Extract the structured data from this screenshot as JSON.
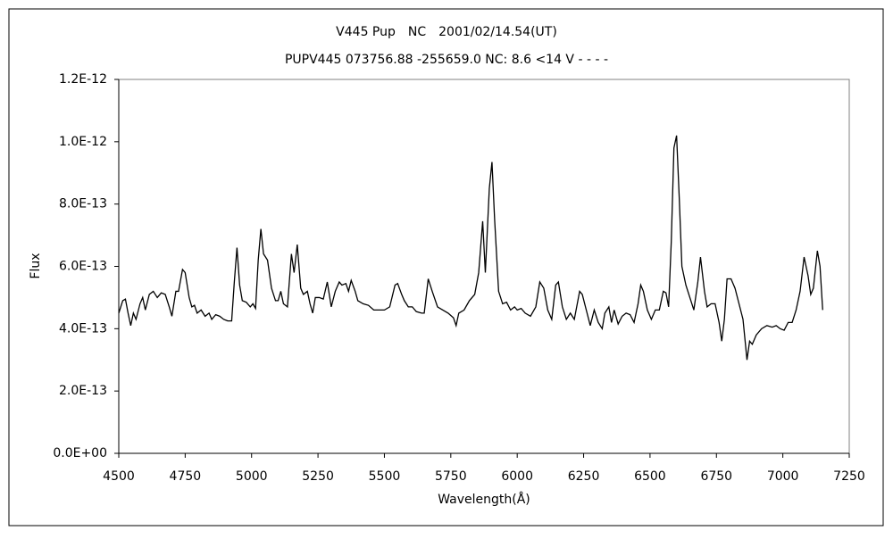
{
  "chart_data": {
    "type": "line",
    "title": "V445 Pup　NC　2001/02/14.54(UT)",
    "subtitle": "PUPV445 073756.88 -255659.0 NC: 8.6 <14 V - - - -",
    "x_label": "Wavelength(Å)",
    "y_label": "Flux",
    "xlim": [
      4500,
      7250
    ],
    "ylim": [
      0,
      1.2e-12
    ],
    "xticks": [
      4500,
      4750,
      5000,
      5250,
      5500,
      5750,
      6000,
      6250,
      6500,
      6750,
      7000,
      7250
    ],
    "yticks": [
      {
        "value": 0,
        "label": "0.0E+00"
      },
      {
        "value": 2e-13,
        "label": "2.0E-13"
      },
      {
        "value": 4e-13,
        "label": "4.0E-13"
      },
      {
        "value": 6e-13,
        "label": "6.0E-13"
      },
      {
        "value": 8e-13,
        "label": "8.0E-13"
      },
      {
        "value": 1e-12,
        "label": "1.0E-12"
      },
      {
        "value": 1.2e-12,
        "label": "1.2E-12"
      }
    ],
    "grid": false,
    "x": [
      4500,
      4515,
      4525,
      4535,
      4545,
      4555,
      4565,
      4580,
      4590,
      4600,
      4615,
      4630,
      4645,
      4660,
      4675,
      4690,
      4700,
      4715,
      4725,
      4740,
      4750,
      4765,
      4775,
      4785,
      4795,
      4810,
      4825,
      4840,
      4850,
      4865,
      4880,
      4895,
      4910,
      4925,
      4935,
      4945,
      4955,
      4965,
      4980,
      4995,
      5005,
      5015,
      5025,
      5035,
      5045,
      5060,
      5075,
      5090,
      5100,
      5110,
      5120,
      5135,
      5150,
      5160,
      5172,
      5185,
      5195,
      5210,
      5220,
      5230,
      5240,
      5255,
      5270,
      5285,
      5300,
      5315,
      5330,
      5340,
      5355,
      5365,
      5375,
      5390,
      5400,
      5420,
      5440,
      5460,
      5480,
      5500,
      5520,
      5540,
      5550,
      5565,
      5575,
      5590,
      5605,
      5620,
      5640,
      5650,
      5665,
      5680,
      5700,
      5720,
      5740,
      5760,
      5770,
      5780,
      5800,
      5820,
      5840,
      5855,
      5870,
      5880,
      5895,
      5905,
      5915,
      5930,
      5945,
      5960,
      5975,
      5990,
      6000,
      6015,
      6030,
      6050,
      6070,
      6085,
      6100,
      6115,
      6130,
      6145,
      6155,
      6170,
      6185,
      6200,
      6215,
      6235,
      6245,
      6260,
      6275,
      6290,
      6305,
      6320,
      6330,
      6345,
      6355,
      6365,
      6380,
      6395,
      6410,
      6425,
      6440,
      6455,
      6465,
      6475,
      6490,
      6505,
      6520,
      6535,
      6550,
      6560,
      6570,
      6580,
      6590,
      6600,
      6610,
      6620,
      6635,
      6650,
      6665,
      6680,
      6690,
      6705,
      6715,
      6730,
      6745,
      6760,
      6770,
      6780,
      6790,
      6805,
      6820,
      6835,
      6850,
      6865,
      6875,
      6885,
      6900,
      6920,
      6940,
      6960,
      6975,
      6990,
      7005,
      7020,
      7035,
      7050,
      7065,
      7080,
      7095,
      7105,
      7115,
      7130,
      7140,
      7150
    ],
    "series": [
      {
        "color": "#000000",
        "values": [
          4.5e-13,
          4.9e-13,
          4.95e-13,
          4.5e-13,
          4.1e-13,
          4.5e-13,
          4.3e-13,
          4.8e-13,
          5e-13,
          4.6e-13,
          5.1e-13,
          5.2e-13,
          5e-13,
          5.15e-13,
          5.1e-13,
          4.7e-13,
          4.4e-13,
          5.2e-13,
          5.2e-13,
          5.9e-13,
          5.8e-13,
          5e-13,
          4.7e-13,
          4.75e-13,
          4.5e-13,
          4.6e-13,
          4.4e-13,
          4.5e-13,
          4.3e-13,
          4.45e-13,
          4.4e-13,
          4.3e-13,
          4.25e-13,
          4.25e-13,
          5.5e-13,
          6.6e-13,
          5.4e-13,
          4.9e-13,
          4.85e-13,
          4.7e-13,
          4.8e-13,
          4.65e-13,
          6.2e-13,
          7.2e-13,
          6.4e-13,
          6.2e-13,
          5.3e-13,
          4.9e-13,
          4.9e-13,
          5.2e-13,
          4.8e-13,
          4.7e-13,
          6.4e-13,
          5.8e-13,
          6.7e-13,
          5.3e-13,
          5.1e-13,
          5.2e-13,
          4.8e-13,
          4.5e-13,
          5e-13,
          5e-13,
          4.95e-13,
          5.5e-13,
          4.7e-13,
          5.2e-13,
          5.5e-13,
          5.4e-13,
          5.45e-13,
          5.2e-13,
          5.55e-13,
          5.2e-13,
          4.9e-13,
          4.8e-13,
          4.75e-13,
          4.6e-13,
          4.6e-13,
          4.6e-13,
          4.7e-13,
          5.4e-13,
          5.45e-13,
          5.1e-13,
          4.9e-13,
          4.7e-13,
          4.7e-13,
          4.55e-13,
          4.5e-13,
          4.5e-13,
          5.6e-13,
          5.2e-13,
          4.7e-13,
          4.6e-13,
          4.5e-13,
          4.35e-13,
          4.1e-13,
          4.5e-13,
          4.6e-13,
          4.9e-13,
          5.1e-13,
          5.8e-13,
          7.45e-13,
          5.8e-13,
          8.5e-13,
          9.35e-13,
          7.5e-13,
          5.2e-13,
          4.8e-13,
          4.85e-13,
          4.6e-13,
          4.7e-13,
          4.6e-13,
          4.65e-13,
          4.5e-13,
          4.4e-13,
          4.7e-13,
          5.5e-13,
          5.3e-13,
          4.6e-13,
          4.3e-13,
          5.4e-13,
          5.5e-13,
          4.7e-13,
          4.3e-13,
          4.5e-13,
          4.3e-13,
          5.2e-13,
          5.1e-13,
          4.6e-13,
          4.1e-13,
          4.6e-13,
          4.2e-13,
          4e-13,
          4.5e-13,
          4.7e-13,
          4.2e-13,
          4.6e-13,
          4.15e-13,
          4.4e-13,
          4.5e-13,
          4.45e-13,
          4.2e-13,
          4.8e-13,
          5.4e-13,
          5.2e-13,
          4.6e-13,
          4.3e-13,
          4.6e-13,
          4.6e-13,
          5.2e-13,
          5.15e-13,
          4.7e-13,
          6.8e-13,
          9.8e-13,
          1.02e-12,
          8.2e-13,
          6e-13,
          5.4e-13,
          5e-13,
          4.6e-13,
          5.5e-13,
          6.3e-13,
          5.2e-13,
          4.7e-13,
          4.8e-13,
          4.8e-13,
          4.2e-13,
          3.6e-13,
          4.3e-13,
          5.6e-13,
          5.6e-13,
          5.3e-13,
          4.8e-13,
          4.3e-13,
          3e-13,
          3.6e-13,
          3.5e-13,
          3.8e-13,
          4e-13,
          4.1e-13,
          4.05e-13,
          4.1e-13,
          4e-13,
          3.95e-13,
          4.2e-13,
          4.2e-13,
          4.6e-13,
          5.2e-13,
          6.3e-13,
          5.7e-13,
          5.1e-13,
          5.3e-13,
          6.5e-13,
          6e-13,
          4.6e-13
        ]
      }
    ]
  }
}
